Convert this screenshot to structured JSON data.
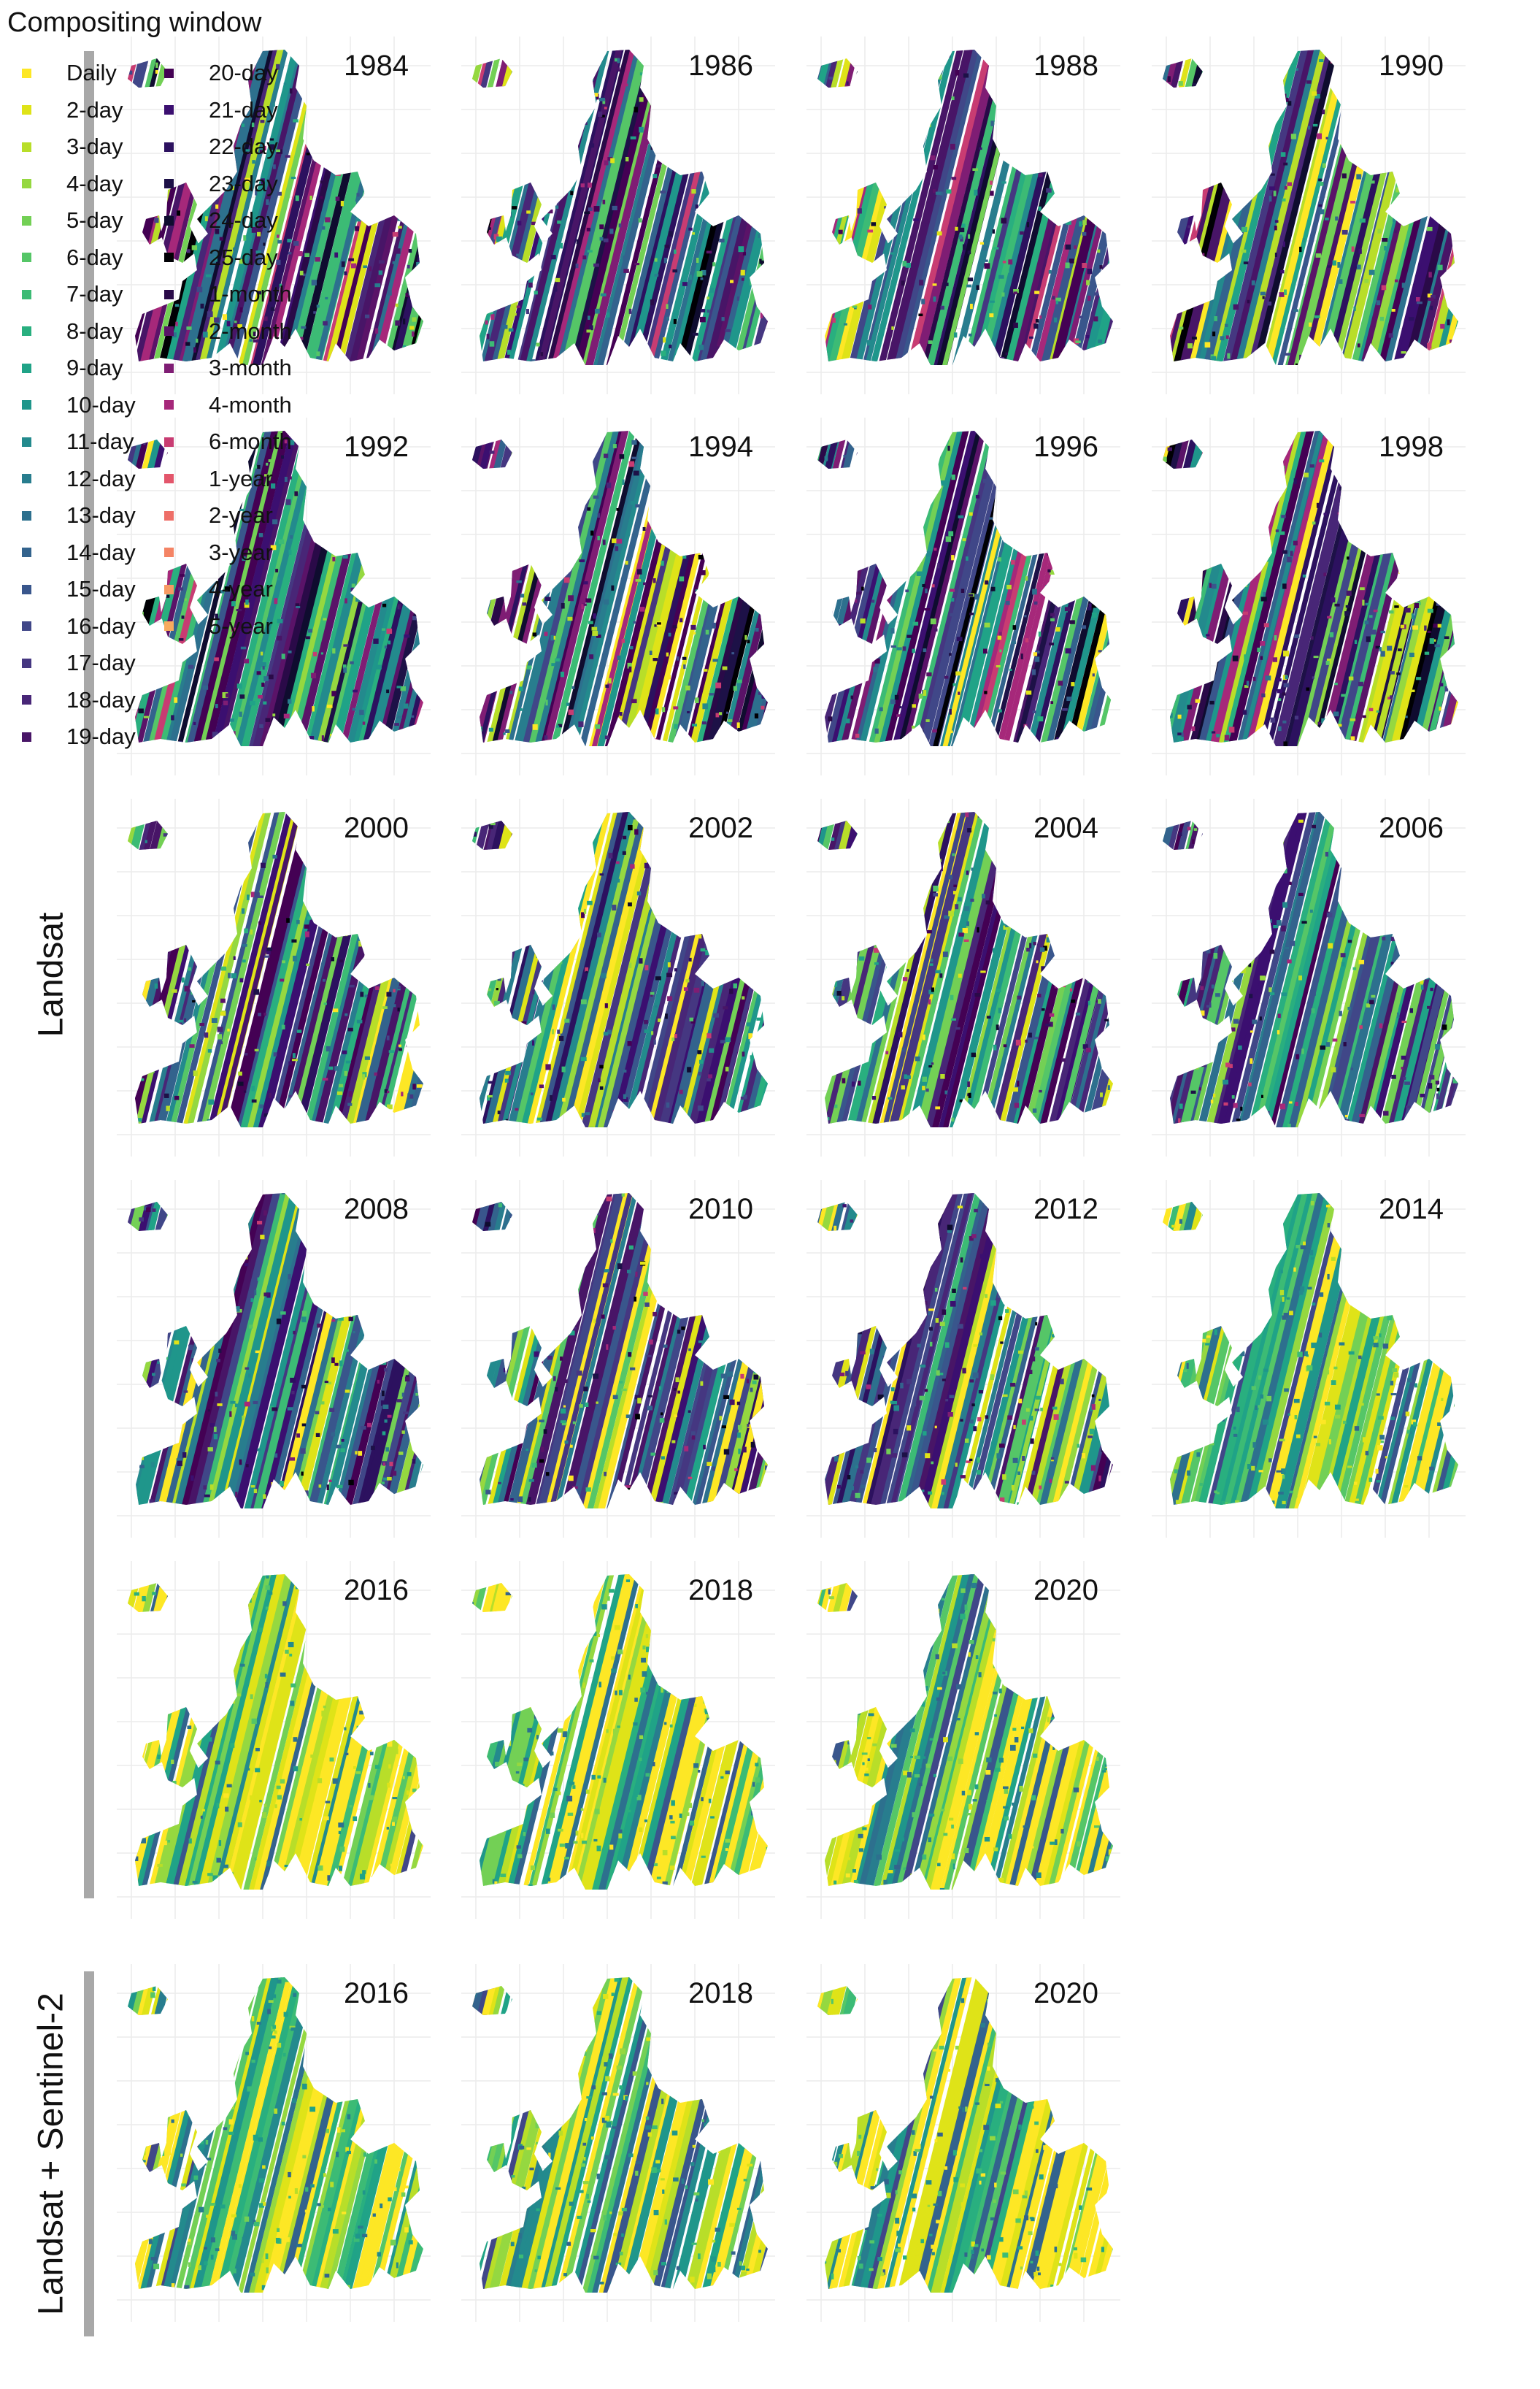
{
  "groups": [
    {
      "label": "Landsat"
    },
    {
      "label": "Landsat + Sentinel-2"
    }
  ],
  "panels": [
    {
      "year": "1984"
    },
    {
      "year": "1986"
    },
    {
      "year": "1988"
    },
    {
      "year": "1990"
    },
    {
      "year": "1992"
    },
    {
      "year": "1994"
    },
    {
      "year": "1996"
    },
    {
      "year": "1998"
    },
    {
      "year": "2000"
    },
    {
      "year": "2002"
    },
    {
      "year": "2004"
    },
    {
      "year": "2006"
    },
    {
      "year": "2008"
    },
    {
      "year": "2010"
    },
    {
      "year": "2012"
    },
    {
      "year": "2014"
    },
    {
      "year": "2016"
    },
    {
      "year": "2018"
    },
    {
      "year": "2020"
    },
    {
      "year": "2016"
    },
    {
      "year": "2018"
    },
    {
      "year": "2020"
    }
  ],
  "legend": {
    "title": "Compositing window",
    "items": [
      {
        "label": "Daily",
        "color": "#fde725"
      },
      {
        "label": "2-day",
        "color": "#dfe318"
      },
      {
        "label": "3-day",
        "color": "#b8de29"
      },
      {
        "label": "4-day",
        "color": "#95d840"
      },
      {
        "label": "5-day",
        "color": "#73d055"
      },
      {
        "label": "6-day",
        "color": "#55c667"
      },
      {
        "label": "7-day",
        "color": "#3cbb75"
      },
      {
        "label": "8-day",
        "color": "#29af7f"
      },
      {
        "label": "9-day",
        "color": "#20a387"
      },
      {
        "label": "10-day",
        "color": "#1f968b"
      },
      {
        "label": "11-day",
        "color": "#238a8d"
      },
      {
        "label": "12-day",
        "color": "#287d8e"
      },
      {
        "label": "13-day",
        "color": "#2d708e"
      },
      {
        "label": "14-day",
        "color": "#33638d"
      },
      {
        "label": "15-day",
        "color": "#39568c"
      },
      {
        "label": "16-day",
        "color": "#404788"
      },
      {
        "label": "17-day",
        "color": "#453781"
      },
      {
        "label": "18-day",
        "color": "#482677"
      },
      {
        "label": "19-day",
        "color": "#481567"
      },
      {
        "label": "20-day",
        "color": "#440154"
      },
      {
        "label": "21-day",
        "color": "#3b0f70"
      },
      {
        "label": "22-day",
        "color": "#2c115f"
      },
      {
        "label": "23-day",
        "color": "#1d1147"
      },
      {
        "label": "24-day",
        "color": "#0f0c2f"
      },
      {
        "label": "25-day",
        "color": "#000004"
      },
      {
        "label": "1-month",
        "color": "#2a0a48"
      },
      {
        "label": "2-month",
        "color": "#5a1368"
      },
      {
        "label": "3-month",
        "color": "#7f1d74"
      },
      {
        "label": "4-month",
        "color": "#a6287a"
      },
      {
        "label": "6-month",
        "color": "#c83c72"
      },
      {
        "label": "1-year",
        "color": "#e3566b"
      },
      {
        "label": "2-year",
        "color": "#ee6f68"
      },
      {
        "label": "3-year",
        "color": "#f48465"
      },
      {
        "label": "4-year",
        "color": "#f79a63"
      },
      {
        "label": "5-year",
        "color": "#f8ab5e"
      }
    ]
  }
}
